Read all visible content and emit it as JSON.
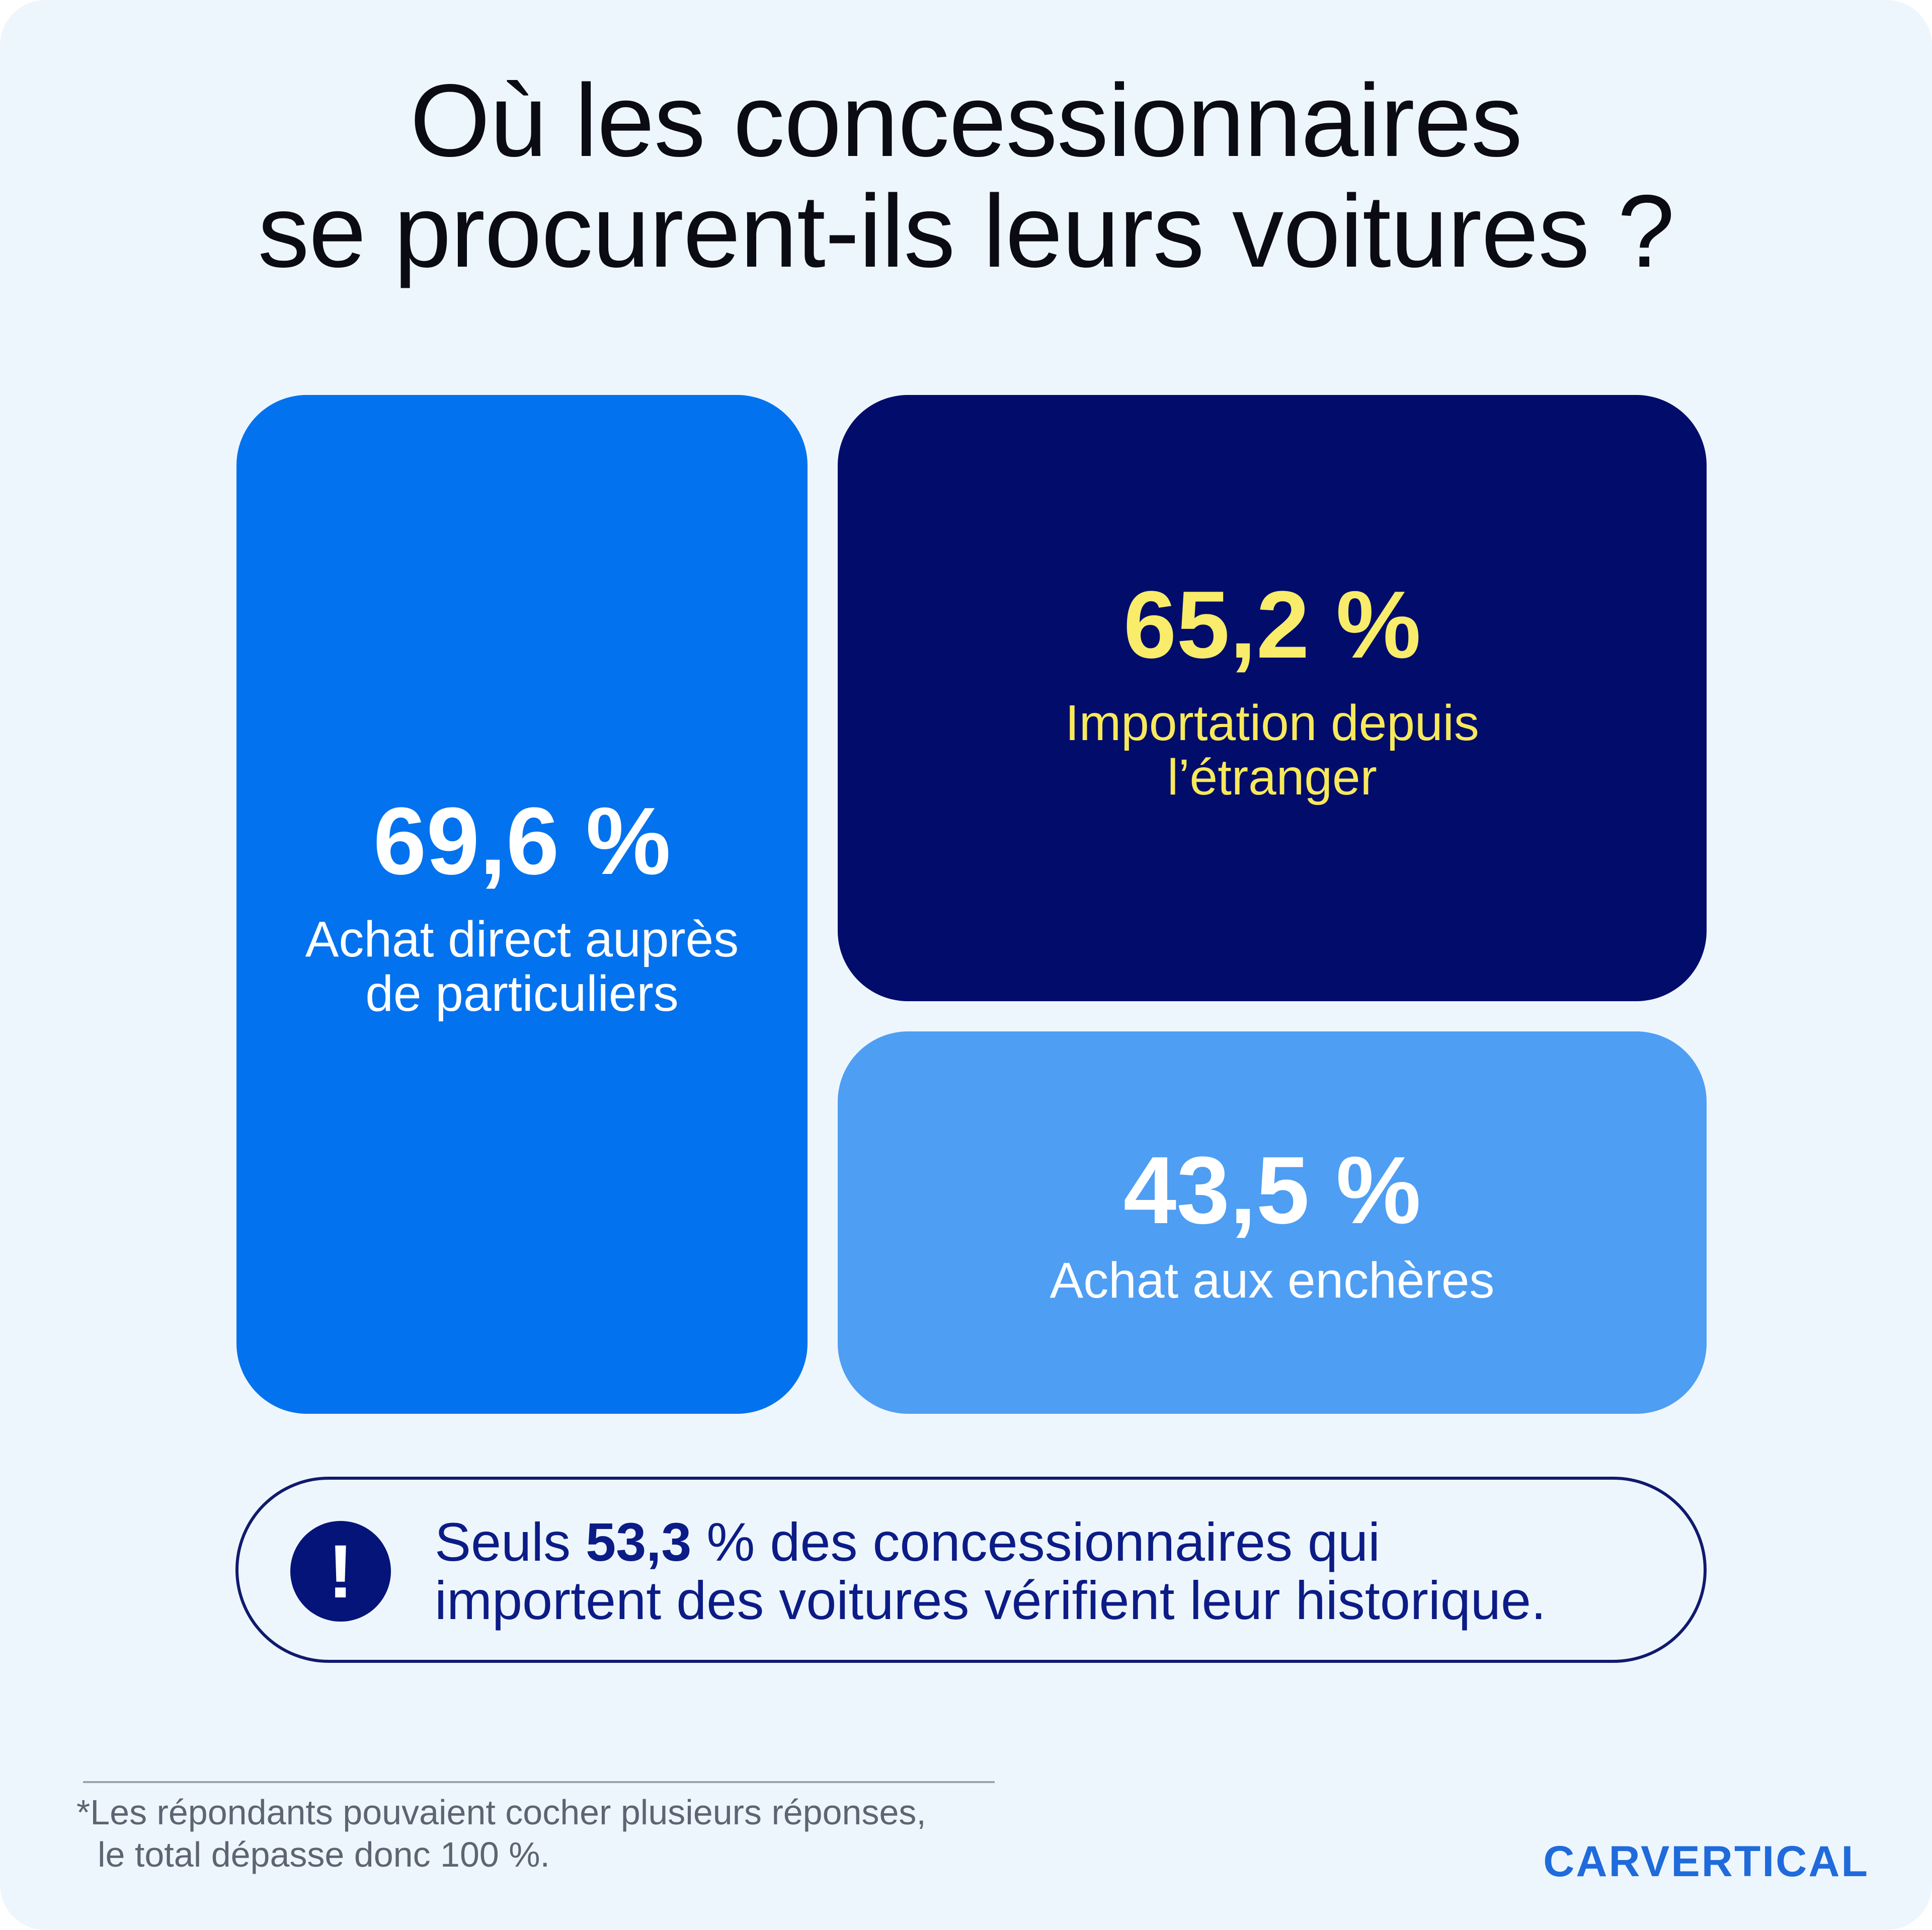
{
  "title": {
    "line1": "Où les concessionnaires",
    "line2": "se procurent-ils leurs voitures ?"
  },
  "chart_data": {
    "type": "treemap",
    "title": "Où les concessionnaires se procurent-ils leurs voitures ?",
    "unit": "%",
    "items": [
      {
        "value": 69.6,
        "value_label": "69,6 %",
        "label_lines": [
          "Achat direct auprès",
          "de particuliers"
        ],
        "color": "#0372ee",
        "text_color": "#ffffff"
      },
      {
        "value": 65.2,
        "value_label": "65,2 %",
        "label_lines": [
          "Importation depuis",
          "l’étranger"
        ],
        "color": "#020d6b",
        "text_color": "#f8e95b"
      },
      {
        "value": 43.5,
        "value_label": "43,5 %",
        "label_lines": [
          "Achat aux enchères"
        ],
        "color": "#4e9ef3",
        "text_color": "#ffffff"
      }
    ]
  },
  "callout": {
    "icon": "exclamation-icon",
    "line1_prefix": "Seuls ",
    "line1_highlight": "53,3",
    "line1_suffix": " % des concessionnaires qui",
    "line2": "importent des voitures vérifient leur historique.",
    "color": "#0c1c86"
  },
  "footnote": {
    "line1": "*Les répondants pouvaient cocher plusieurs réponses,",
    "line2": "le total dépasse donc 100 %."
  },
  "brand": {
    "logo_text": "CARVERTICAL",
    "color": "#1f6bdb"
  }
}
